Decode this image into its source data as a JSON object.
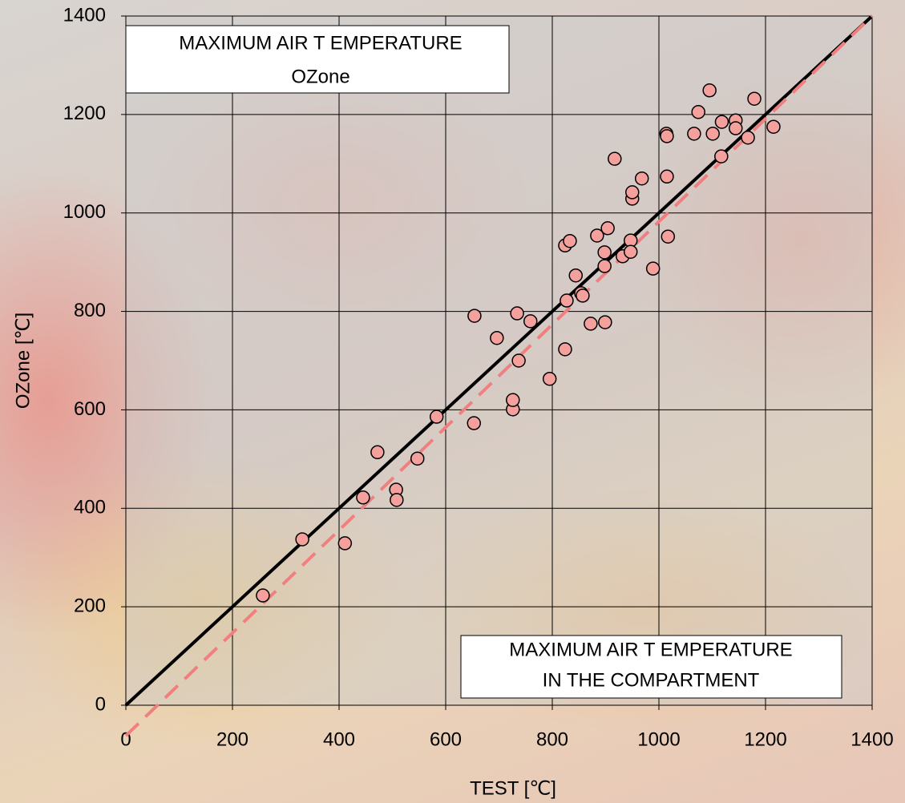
{
  "chart_data": {
    "type": "scatter",
    "x_label": "TEST [℃]",
    "y_label": "OZone [℃]",
    "xlim": [
      0,
      1400
    ],
    "ylim": [
      0,
      1400
    ],
    "xticks": [
      0,
      200,
      400,
      600,
      800,
      1000,
      1200,
      1400
    ],
    "yticks": [
      0,
      200,
      400,
      600,
      800,
      1000,
      1200,
      1400
    ],
    "grid": true,
    "annotations": [
      {
        "lines": [
          "MAXIMUM AIR T EMPERATURE",
          "OZone"
        ]
      },
      {
        "lines": [
          "MAXIMUM AIR T EMPERATURE",
          "IN THE COMPARTMENT"
        ]
      }
    ],
    "series": [
      {
        "color": "#f4a09c",
        "x": [
          257,
          331,
          411,
          445,
          472,
          507,
          508,
          547,
          583,
          653,
          654,
          696,
          726,
          726,
          734,
          737,
          759,
          795,
          824,
          833,
          844,
          824,
          827,
          854,
          857,
          872,
          899,
          884,
          904,
          898,
          898,
          917,
          932,
          947,
          947,
          950,
          950,
          968,
          989,
          1014,
          1015,
          1015,
          1017,
          1066,
          1074,
          1095,
          1101,
          1117,
          1118,
          1144,
          1144,
          1167,
          1179,
          1215
        ],
        "values": [
          223,
          337,
          329,
          422,
          514,
          438,
          417,
          501,
          586,
          573,
          791,
          746,
          601,
          620,
          796,
          700,
          780,
          663,
          934,
          943,
          873,
          723,
          822,
          837,
          832,
          775,
          778,
          954,
          969,
          920,
          892,
          1110,
          912,
          944,
          921,
          1029,
          1042,
          1070,
          887,
          1161,
          1156,
          1074,
          952,
          1161,
          1205,
          1249,
          1161,
          1115,
          1185,
          1188,
          1172,
          1153,
          1232,
          1175
        ]
      }
    ],
    "lines": [
      {
        "color": "#000000",
        "dashed": false,
        "x": [
          0,
          1400
        ],
        "values": [
          0,
          1400
        ]
      },
      {
        "color": "#f08080",
        "dashed": true,
        "x": [
          0,
          1400
        ],
        "values": [
          -62,
          1400
        ]
      }
    ]
  }
}
